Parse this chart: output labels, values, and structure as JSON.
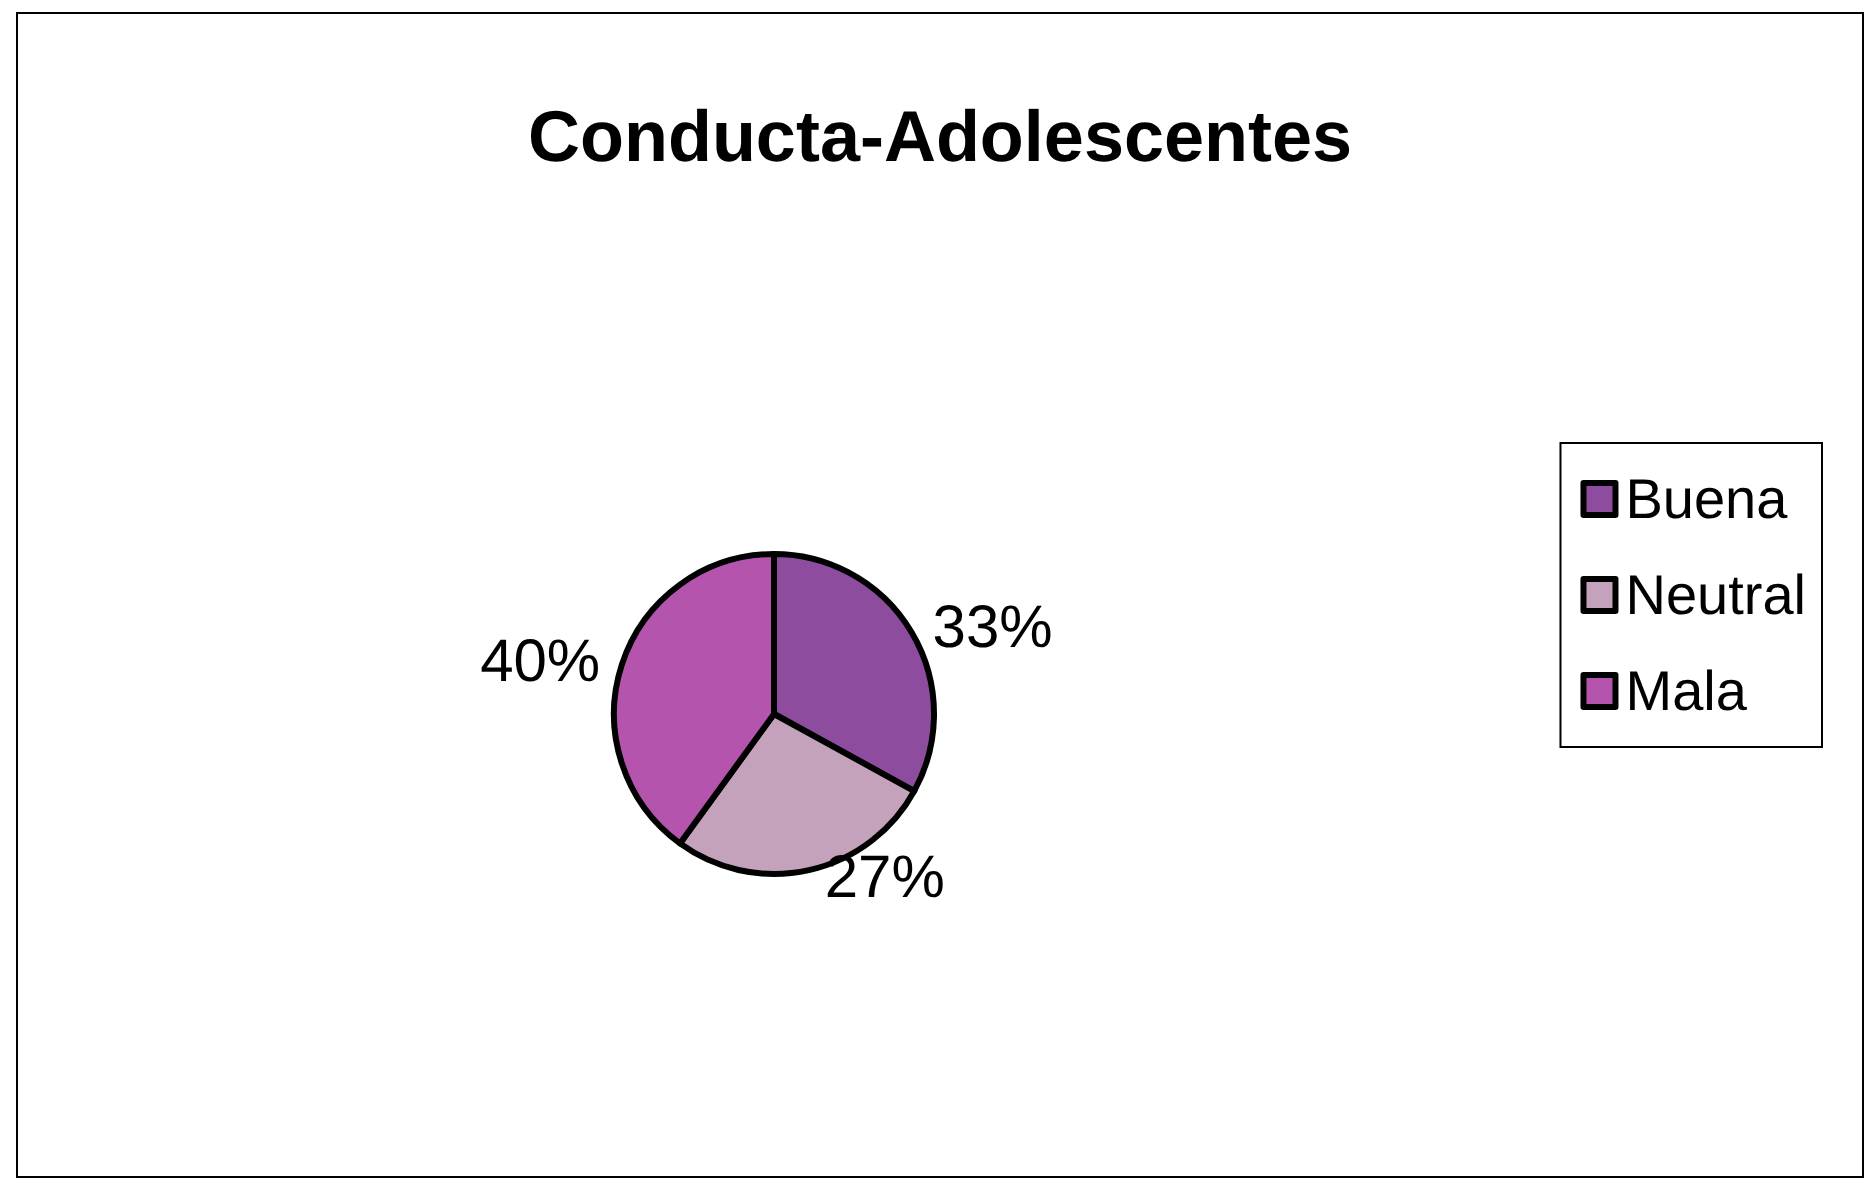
{
  "chart_data": {
    "type": "pie",
    "title": "Conducta-Adolescentes",
    "categories": [
      "Buena",
      "Neutral",
      "Mala"
    ],
    "values": [
      33,
      27,
      40
    ],
    "value_labels": [
      "33%",
      "27%",
      "40%"
    ],
    "colors": [
      "#8e4c9e",
      "#c4a2bc",
      "#b454ac"
    ],
    "legend": "right"
  }
}
